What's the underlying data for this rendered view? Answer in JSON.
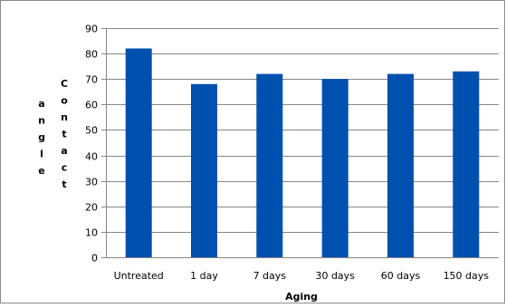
{
  "chart_data": {
    "type": "bar",
    "categories": [
      "Untreated",
      "1 day",
      "7 days",
      "30 days",
      "60 days",
      "150 days"
    ],
    "values": [
      82,
      68,
      72,
      70,
      72,
      73
    ],
    "title": "",
    "xlabel": "Aging",
    "ylabel_words": [
      "Contact",
      "angle"
    ],
    "ylim": [
      0,
      90
    ],
    "yticks": [
      0,
      10,
      20,
      30,
      40,
      50,
      60,
      70,
      80,
      90
    ],
    "grid": true,
    "legend": "none",
    "bar_color": "#0050b0",
    "grid_color": "#868686"
  }
}
